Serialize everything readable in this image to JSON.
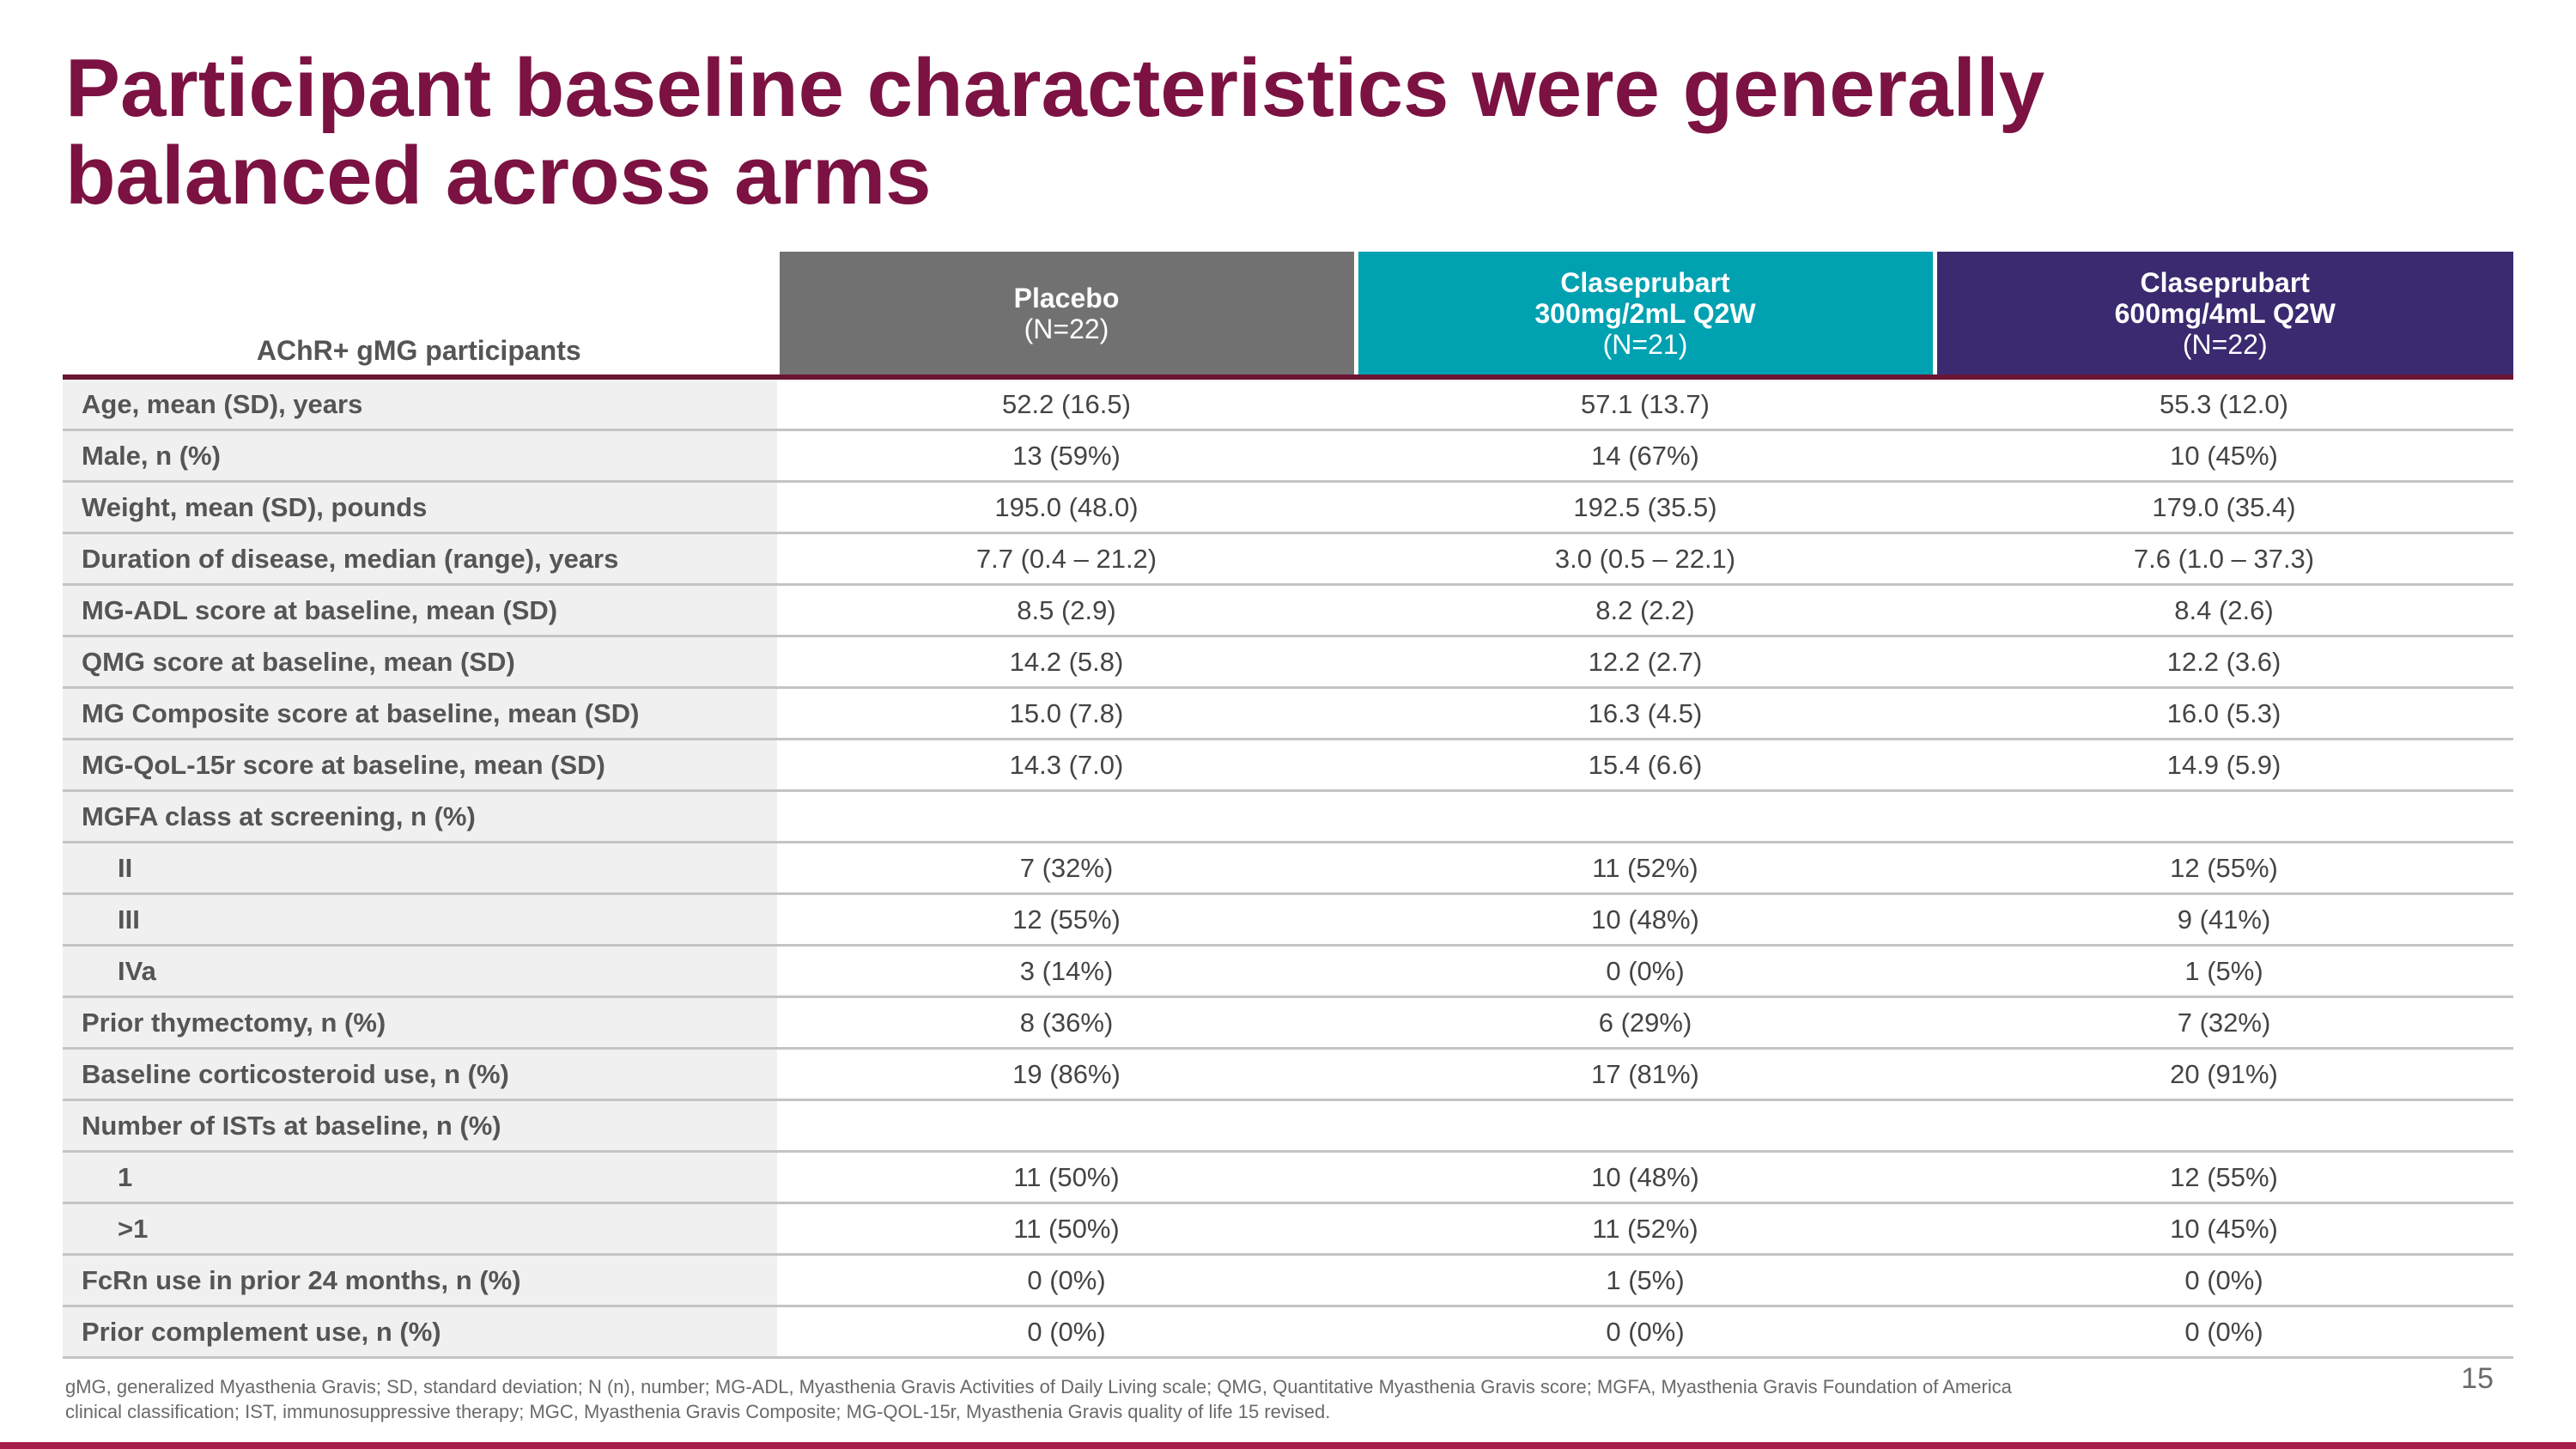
{
  "title": "Participant baseline characteristics were generally balanced across arms",
  "table": {
    "corner_label": "AChR+ gMG participants",
    "headers": [
      {
        "name": "Placebo",
        "n": "(N=22)",
        "color": "#717171"
      },
      {
        "name": "Claseprubart 300mg/2mL Q2W",
        "n": "(N=21)",
        "color": "#00a1b1"
      },
      {
        "name": "Claseprubart 600mg/4mL Q2W",
        "n": "(N=22)",
        "color": "#3b2a70"
      }
    ],
    "rows": [
      {
        "label": "Age, mean (SD), years",
        "values": [
          "52.2 (16.5)",
          "57.1 (13.7)",
          "55.3 (12.0)"
        ]
      },
      {
        "label": "Male, n (%)",
        "values": [
          "13 (59%)",
          "14 (67%)",
          "10 (45%)"
        ]
      },
      {
        "label": "Weight, mean (SD), pounds",
        "values": [
          "195.0 (48.0)",
          "192.5 (35.5)",
          "179.0 (35.4)"
        ]
      },
      {
        "label": "Duration of disease, median (range), years",
        "values": [
          "7.7 (0.4 – 21.2)",
          "3.0 (0.5 – 22.1)",
          "7.6 (1.0 – 37.3)"
        ]
      },
      {
        "label": "MG-ADL score at baseline, mean (SD)",
        "values": [
          "8.5 (2.9)",
          "8.2 (2.2)",
          "8.4 (2.6)"
        ]
      },
      {
        "label": "QMG score at baseline, mean (SD)",
        "values": [
          "14.2 (5.8)",
          "12.2 (2.7)",
          "12.2 (3.6)"
        ]
      },
      {
        "label": "MG Composite score at baseline, mean (SD)",
        "values": [
          "15.0 (7.8)",
          "16.3 (4.5)",
          "16.0 (5.3)"
        ]
      },
      {
        "label": "MG-QoL-15r score at baseline, mean (SD)",
        "values": [
          "14.3 (7.0)",
          "15.4 (6.6)",
          "14.9 (5.9)"
        ]
      },
      {
        "label": "MGFA class at screening, n (%)",
        "values": [
          "",
          "",
          ""
        ]
      },
      {
        "label": "II",
        "sub": true,
        "values": [
          "7 (32%)",
          "11 (52%)",
          "12 (55%)"
        ]
      },
      {
        "label": "III",
        "sub": true,
        "values": [
          "12 (55%)",
          "10 (48%)",
          "9 (41%)"
        ]
      },
      {
        "label": "IVa",
        "sub": true,
        "values": [
          "3 (14%)",
          "0 (0%)",
          "1 (5%)"
        ]
      },
      {
        "label": "Prior thymectomy, n (%)",
        "values": [
          "8 (36%)",
          "6 (29%)",
          "7 (32%)"
        ]
      },
      {
        "label": "Baseline corticosteroid use, n (%)",
        "values": [
          "19 (86%)",
          "17 (81%)",
          "20 (91%)"
        ]
      },
      {
        "label": "Number of ISTs at baseline, n (%)",
        "values": [
          "",
          "",
          ""
        ]
      },
      {
        "label": "1",
        "sub": true,
        "values": [
          "11 (50%)",
          "10 (48%)",
          "12 (55%)"
        ]
      },
      {
        "label": ">1",
        "sub": true,
        "values": [
          "11 (50%)",
          "11 (52%)",
          "10 (45%)"
        ]
      },
      {
        "label": "FcRn use in prior 24 months, n (%)",
        "values": [
          "0 (0%)",
          "1 (5%)",
          "0 (0%)"
        ]
      },
      {
        "label": "Prior complement use, n (%)",
        "values": [
          "0 (0%)",
          "0 (0%)",
          "0 (0%)"
        ]
      }
    ]
  },
  "footnote": "gMG, generalized Myasthenia Gravis; SD, standard deviation; N (n), number; MG-ADL, Myasthenia Gravis Activities of Daily Living scale; QMG, Quantitative Myasthenia Gravis score; MGFA, Myasthenia Gravis Foundation of America clinical classification; IST, immunosuppressive therapy; MGC, Myasthenia Gravis Composite; MG-QOL-15r, Myasthenia Gravis quality of life 15 revised.",
  "page_number": "15",
  "colors": {
    "title": "#7b1242",
    "accent_bar": "#a51f48"
  }
}
